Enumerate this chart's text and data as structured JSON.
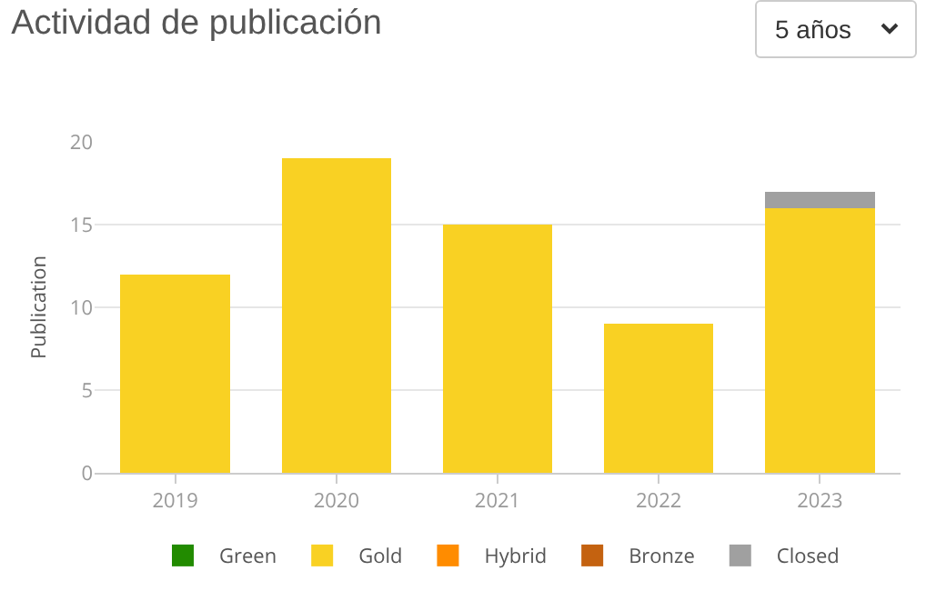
{
  "chart_data": {
    "type": "bar",
    "title": "Actividad de publicación",
    "ylabel": "Publication",
    "categories": [
      "2019",
      "2020",
      "2021",
      "2022",
      "2023"
    ],
    "series": [
      {
        "name": "Green",
        "color": "#228b00",
        "values": [
          0,
          0,
          0,
          0,
          0
        ]
      },
      {
        "name": "Gold",
        "color": "#f9d123",
        "values": [
          12,
          19,
          15,
          9,
          16
        ]
      },
      {
        "name": "Hybrid",
        "color": "#ff8c00",
        "values": [
          0,
          0,
          0,
          0,
          0
        ]
      },
      {
        "name": "Bronze",
        "color": "#c46210",
        "values": [
          0,
          0,
          0,
          0,
          0
        ]
      },
      {
        "name": "Closed",
        "color": "#a0a0a0",
        "values": [
          0,
          0,
          0,
          0,
          1
        ]
      }
    ],
    "stacked": true,
    "ylim": [
      0,
      20
    ],
    "yticks": [
      0,
      5,
      10,
      15,
      20
    ],
    "grid": "y",
    "legend": "bottom",
    "annotations": [
      "5 años"
    ]
  }
}
